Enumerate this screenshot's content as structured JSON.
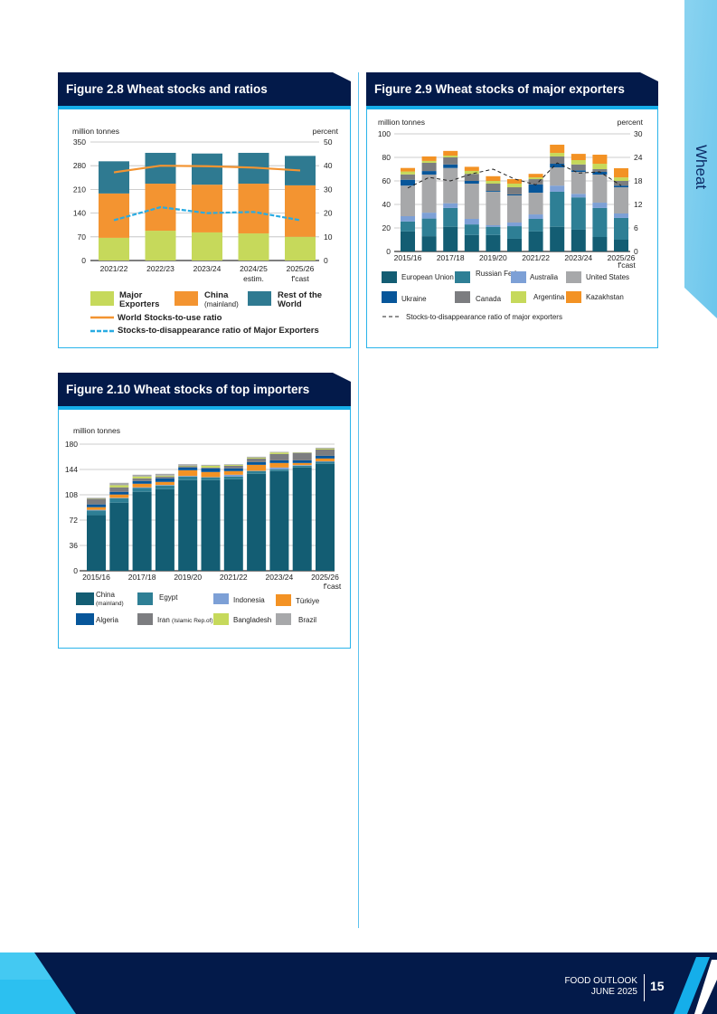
{
  "side_tab": {
    "label": "Wheat",
    "color": "#7fcdee"
  },
  "footer": {
    "publication": "FOOD OUTLOOK",
    "date": "JUNE 2025",
    "page": "15"
  },
  "chart_data": [
    {
      "type": "bar",
      "stacked": true,
      "title": "Figure 2.8 Wheat stocks and ratios",
      "ylabel": "million tonnes",
      "y2label": "percent",
      "ylim": [
        0,
        350
      ],
      "yticks": [
        0,
        70,
        140,
        210,
        280,
        350
      ],
      "y2lim": [
        0,
        50
      ],
      "y2ticks": [
        0,
        10,
        20,
        30,
        40,
        50
      ],
      "grid": true,
      "legend": "bottom",
      "x_tick_labels": [
        "2021/22",
        "2022/23",
        "2023/24",
        "2024/25",
        "2025/26"
      ],
      "x_tick_notes": [
        "",
        "",
        "",
        "estim.",
        "f'cast"
      ],
      "series": [
        {
          "name": "Major Exporters",
          "sublabel": "",
          "color": "#c6d95b",
          "values": [
            67,
            88,
            83,
            80,
            70
          ]
        },
        {
          "name": "China",
          "sublabel": "(mainland)",
          "color": "#f39431",
          "values": [
            131,
            139,
            141,
            147,
            152
          ]
        },
        {
          "name": "Rest of the World",
          "sublabel": "",
          "color": "#2f7a91",
          "values": [
            95,
            91,
            92,
            91,
            87
          ]
        }
      ],
      "lines": [
        {
          "name": "World Stocks-to-use ratio",
          "axis": "right",
          "color": "#f39431",
          "dashed": false,
          "values": [
            37.2,
            40.0,
            39.8,
            39.2,
            38.0
          ]
        },
        {
          "name": "Stocks-to-disappearance ratio of Major Exporters",
          "axis": "right",
          "color": "#29abe2",
          "dashed": true,
          "values": [
            17.0,
            22.5,
            20.0,
            20.5,
            17.0
          ]
        }
      ]
    },
    {
      "type": "bar",
      "stacked": true,
      "title": "Figure 2.9 Wheat stocks of major exporters",
      "ylabel": "million tonnes",
      "y2label": "percent",
      "ylim": [
        0,
        100
      ],
      "yticks": [
        0,
        20,
        40,
        60,
        80,
        100
      ],
      "y2lim": [
        0,
        30
      ],
      "y2ticks": [
        0,
        6,
        12,
        18,
        24,
        30
      ],
      "grid": true,
      "legend": "bottom",
      "x_tick_labels": [
        "2015/16",
        "2017/18",
        "2019/20",
        "2021/22",
        "2023/24",
        "2025/26"
      ],
      "x_tick_notes": [
        "",
        "",
        "",
        "",
        "",
        "f'cast"
      ],
      "series": [
        {
          "name": "European Union",
          "color": "#135d73",
          "values": [
            17,
            13,
            21,
            14,
            14,
            10.8,
            17,
            21,
            18.5,
            12.3,
            10
          ]
        },
        {
          "name": "Russian Fed.",
          "color": "#2e7f95",
          "values": [
            8.5,
            15,
            16,
            9,
            7,
            10.7,
            10.7,
            29.8,
            27.5,
            24.7,
            18.5
          ]
        },
        {
          "name": "Australia",
          "color": "#7da0d6",
          "values": [
            4.5,
            5,
            4,
            4.7,
            1.3,
            3.1,
            3.8,
            5.2,
            3,
            4.5,
            3.8
          ]
        },
        {
          "name": "United States",
          "color": "#a7a8aa",
          "values": [
            26,
            32.4,
            30,
            30,
            28.5,
            23.1,
            18.5,
            15.5,
            18.7,
            23.9,
            22.3
          ]
        },
        {
          "name": "Ukraine",
          "color": "#07569a",
          "values": [
            5,
            3,
            3,
            2.3,
            0.7,
            0.8,
            7,
            3.1,
            1.3,
            2.3,
            1.4
          ]
        },
        {
          "name": "Canada",
          "color": "#7c7d80",
          "values": [
            4.5,
            7,
            6,
            6,
            6.2,
            6.1,
            4.5,
            6.2,
            5,
            2.3,
            4
          ]
        },
        {
          "name": "Argentina",
          "color": "#c6d95b",
          "values": [
            2.5,
            1.6,
            1.5,
            2.5,
            2.3,
            3.1,
            1.5,
            3,
            3.7,
            4.6,
            3
          ]
        },
        {
          "name": "Kazakhstan",
          "color": "#f39224",
          "values": [
            3,
            3.8,
            4,
            3.5,
            4,
            3.8,
            3,
            7,
            5.3,
            7.7,
            7.8
          ]
        }
      ],
      "lines": [
        {
          "name": "Stocks-to-disappearance ratio of major exporters",
          "axis": "right",
          "color": "#222222",
          "dashed": true,
          "values": [
            16.2,
            18.9,
            18.0,
            19.8,
            21.0,
            18.5,
            17.0,
            22.6,
            20.0,
            20.3,
            16.8
          ]
        }
      ]
    },
    {
      "type": "bar",
      "stacked": true,
      "title": "Figure 2.10 Wheat stocks of top importers",
      "ylabel": "million tonnes",
      "ylim": [
        0,
        180
      ],
      "yticks": [
        0,
        36,
        72,
        108,
        144,
        180
      ],
      "grid": true,
      "legend": "bottom",
      "x_tick_labels": [
        "2015/16",
        "2017/18",
        "2019/20",
        "2021/22",
        "2023/24",
        "2025/26"
      ],
      "x_tick_notes": [
        "",
        "",
        "",
        "",
        "",
        "f'cast"
      ],
      "series": [
        {
          "name": "China",
          "sublabel": "(mainland)",
          "color": "#135d73",
          "values": [
            79,
            96.8,
            112.2,
            116,
            128.8,
            128.8,
            130.1,
            137.8,
            141.7,
            146.8,
            151.9
          ]
        },
        {
          "name": "Egypt",
          "color": "#2e7f95",
          "values": [
            6.7,
            6.4,
            5.5,
            5.2,
            5.2,
            3.9,
            3.9,
            3.9,
            2.5,
            2.5,
            3
          ]
        },
        {
          "name": "Indonesia",
          "color": "#7da0d6",
          "values": [
            0.9,
            0.5,
            0.9,
            0.8,
            0.8,
            0.4,
            2.5,
            0.4,
            2.6,
            0.9,
            0.8
          ]
        },
        {
          "name": "Türkiye",
          "color": "#f39224",
          "values": [
            3.8,
            4.7,
            5.1,
            4.3,
            8.1,
            7.3,
            5.2,
            8.5,
            6.4,
            3,
            3.9
          ]
        },
        {
          "name": "Algeria",
          "color": "#07569a",
          "values": [
            3.9,
            3.8,
            3.9,
            5.1,
            3.9,
            5.1,
            3.8,
            3.8,
            3.8,
            3.8,
            3.8
          ]
        },
        {
          "name": "Iran",
          "sublabel": "(Islamic Rep.of)",
          "color": "#7c7d80",
          "values": [
            8.1,
            6.4,
            3.8,
            2.6,
            1.7,
            1.3,
            3.8,
            5.2,
            9,
            10.2,
            9
          ]
        },
        {
          "name": "Bangladesh",
          "color": "#c6d95b",
          "values": [
            0.4,
            3,
            2.6,
            1.2,
            0.8,
            2.5,
            1.3,
            1.2,
            2.1,
            0.5,
            1.2
          ]
        },
        {
          "name": "Brazil",
          "color": "#a7a8aa",
          "values": [
            0.9,
            3.4,
            2.5,
            2.6,
            2.2,
            1.3,
            0.9,
            1.3,
            0.9,
            0.8,
            1.3
          ]
        }
      ]
    }
  ]
}
